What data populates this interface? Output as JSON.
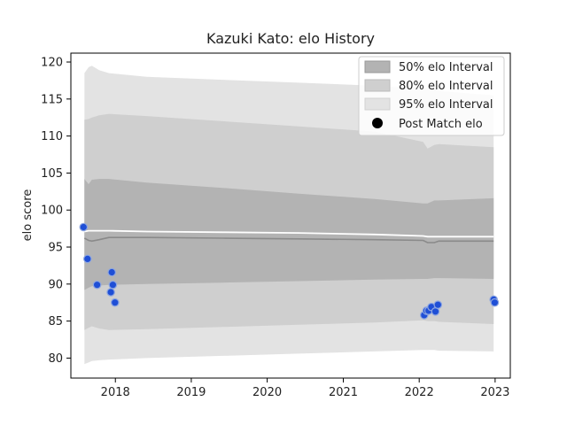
{
  "chart_data": {
    "type": "line",
    "title": "Kazuki Kato: elo History",
    "xlabel": "",
    "ylabel": "elo score",
    "xlim": [
      "2017-06-01",
      "2023-03-15"
    ],
    "ylim": [
      77.3,
      121.2
    ],
    "x_ticks": [
      "2018",
      "2019",
      "2020",
      "2021",
      "2022",
      "2023"
    ],
    "y_ticks": [
      80,
      85,
      90,
      95,
      100,
      105,
      110,
      115,
      120
    ],
    "grid": false,
    "legend": {
      "placement": "top-right",
      "entries": [
        "50% elo Interval",
        "80% elo Interval",
        "95% elo Interval",
        "Post Match elo"
      ]
    },
    "colors": {
      "band_50": "#b3b3b3",
      "band_80": "#cfcfcf",
      "band_95": "#e3e3e3",
      "median_line": "#8a8a8a",
      "mean_line": "#ffffff",
      "points": "#1f4fd6"
    },
    "x": [
      "2017-08-05",
      "2017-08-25",
      "2017-09-10",
      "2017-10-15",
      "2017-12-01",
      "2018-06-01",
      "2019-06-01",
      "2020-06-01",
      "2021-06-01",
      "2022-01-20",
      "2022-02-10",
      "2022-03-15",
      "2022-04-05",
      "2022-12-25"
    ],
    "series": [
      {
        "name": "95% elo Interval",
        "upper": [
          118.5,
          119.3,
          119.5,
          118.9,
          118.5,
          118.0,
          117.6,
          117.2,
          116.8,
          116.4,
          116.5,
          116.4,
          116.1,
          115.5
        ],
        "lower": [
          79.2,
          79.4,
          79.6,
          79.7,
          79.8,
          80.0,
          80.3,
          80.6,
          80.9,
          81.1,
          81.1,
          81.1,
          81.0,
          80.9
        ]
      },
      {
        "name": "80% elo Interval",
        "upper": [
          112.2,
          112.3,
          112.5,
          112.8,
          113.0,
          112.7,
          112.0,
          111.3,
          110.6,
          109.2,
          108.3,
          108.8,
          108.9,
          108.5
        ],
        "lower": [
          83.8,
          84.1,
          84.3,
          84.0,
          83.8,
          83.9,
          84.2,
          84.5,
          84.8,
          85.1,
          85.0,
          85.0,
          84.9,
          84.6
        ]
      },
      {
        "name": "50% elo Interval",
        "upper": [
          104.2,
          103.5,
          104.1,
          104.2,
          104.2,
          103.7,
          103.0,
          102.2,
          101.5,
          100.9,
          100.9,
          101.3,
          101.3,
          101.6
        ],
        "lower": [
          89.2,
          89.5,
          89.7,
          89.8,
          89.9,
          90.0,
          90.2,
          90.4,
          90.6,
          90.7,
          90.7,
          90.8,
          90.8,
          90.7
        ]
      },
      {
        "name": "median",
        "values": [
          96.2,
          95.9,
          95.8,
          96.0,
          96.3,
          96.3,
          96.2,
          96.1,
          96.0,
          95.9,
          95.6,
          95.6,
          95.8,
          95.8
        ]
      },
      {
        "name": "mean",
        "values": [
          97.1,
          97.2,
          97.2,
          97.2,
          97.2,
          97.1,
          97.0,
          96.9,
          96.7,
          96.5,
          96.4,
          96.4,
          96.4,
          96.4
        ]
      }
    ],
    "points": {
      "name": "Post Match elo",
      "x": [
        "2017-08-01",
        "2017-08-20",
        "2017-10-05",
        "2017-12-10",
        "2017-12-15",
        "2017-12-20",
        "2017-12-30",
        "2022-01-25",
        "2022-02-05",
        "2022-02-15",
        "2022-03-01",
        "2022-03-20",
        "2022-04-01",
        "2022-12-25",
        "2022-12-30"
      ],
      "y": [
        97.7,
        93.4,
        89.9,
        88.9,
        91.6,
        89.9,
        87.5,
        85.8,
        86.4,
        86.4,
        86.9,
        86.3,
        87.2,
        87.9,
        87.5
      ]
    }
  }
}
